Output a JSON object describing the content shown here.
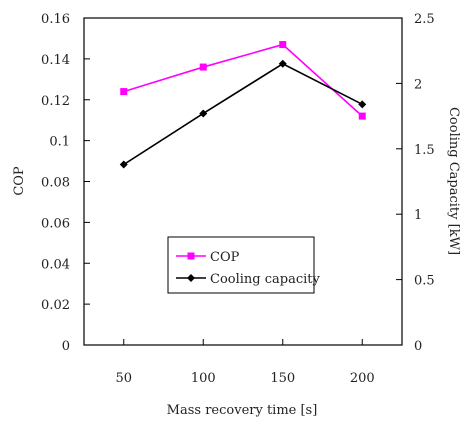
{
  "chart_data": {
    "type": "line",
    "title": "",
    "xlabel": "Mass recovery time [s]",
    "ylabel": "COP",
    "y2label": "Cooling Capacity [kW]",
    "x": [
      50,
      100,
      150,
      200
    ],
    "x_ticks": [
      "50",
      "100",
      "150",
      "200"
    ],
    "xlim": [
      25,
      225
    ],
    "ylim": [
      0,
      0.16
    ],
    "y_ticks": [
      "0",
      "0.02",
      "0.04",
      "0.06",
      "0.08",
      "0.1",
      "0.12",
      "0.14",
      "0.16"
    ],
    "y2lim": [
      0,
      2.5
    ],
    "y2_ticks": [
      "0",
      "0.5",
      "1",
      "1.5",
      "2",
      "2.5"
    ],
    "grid": false,
    "legend_position": "bottom-center",
    "series": [
      {
        "name": "COP",
        "axis": "left",
        "color": "#ff00ff",
        "marker": "square",
        "values": [
          0.124,
          0.136,
          0.147,
          0.112
        ]
      },
      {
        "name": "Cooling capacity",
        "axis": "right",
        "color": "#000000",
        "marker": "diamond",
        "values": [
          1.38,
          1.77,
          2.15,
          1.84
        ]
      }
    ]
  }
}
